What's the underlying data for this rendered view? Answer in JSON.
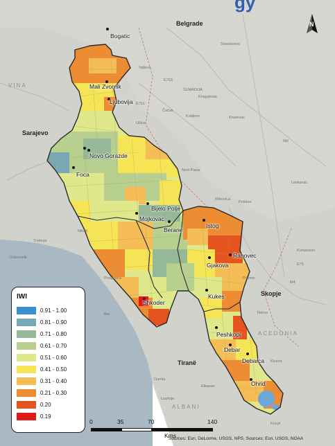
{
  "map": {
    "title_fragment": "gy",
    "legend": {
      "title": "IWI",
      "items": [
        {
          "label": "0.91 - 1.00",
          "color": "#3a8fd0"
        },
        {
          "label": "0.81 - 0.90",
          "color": "#78a8b4"
        },
        {
          "label": "0.71 - 0.80",
          "color": "#95b996"
        },
        {
          "label": "0.61 - 0.70",
          "color": "#b7d08f"
        },
        {
          "label": "0.51 - 0.60",
          "color": "#dfe88a"
        },
        {
          "label": "0.41 - 0.50",
          "color": "#f5e556"
        },
        {
          "label": "0.31 - 0.40",
          "color": "#f4bd56"
        },
        {
          "label": "0.21 - 0.30",
          "color": "#ee8c33"
        },
        {
          "label": "0.20",
          "color": "#e5541f"
        },
        {
          "label": "0.19",
          "color": "#e01a1a"
        }
      ]
    },
    "places": [
      "Bogatic",
      "Mali Zvornik",
      "Ljubovija",
      "Novo Gorazde",
      "Foca",
      "Bijelo Polje",
      "Mojkovac",
      "Berane",
      "Istog",
      "Rahovec",
      "Gjakova",
      "Shkoder",
      "Kukes",
      "Peshkopi",
      "Debar",
      "Debarca",
      "Ohrid"
    ],
    "basemap_labels": {
      "belgrade": "Belgrade",
      "sarajevo": "Sarajevo",
      "skopje": "Skopje",
      "tirane": "Tiranë",
      "vina": "VINA",
      "albania": "ALBANI",
      "macedonia": "ACEDONIA",
      "e763": "E763",
      "e761": "E761",
      "e75": "E75",
      "m4": "M4",
      "smederevo": "Smederevo",
      "sumadija": "ŠUMADIJA",
      "kragujevac": "Kragujevac",
      "kraljevo": "Kraljevo",
      "krusevac": "Krusevac",
      "nis": "Niš",
      "leskovac": "Leskovac",
      "cacak": "Čačak",
      "pristina": "Priština",
      "novi_pazar": "Novi Pazar",
      "mitrovica": "Mitrovica",
      "prizren": "Prizren",
      "kumanovo": "Kumanovo",
      "tetovo": "Tetovo",
      "kicevo": "Kicevo",
      "elbasan": "Elbasan",
      "lushnje": "Lushnje",
      "durres": "Durrës",
      "podgorica": "Podgorica",
      "trebinje": "Trebinje",
      "dubrovnik": "Dubrovnik",
      "bar": "Bar",
      "niksic": "Nikšić",
      "uzice": "Užice",
      "valjevo": "Valjevo",
      "korce": "Korçë"
    },
    "north_label": "N",
    "scale": {
      "ticks": [
        "0",
        "35",
        "70",
        "140"
      ],
      "unit": "Kms"
    },
    "attribution": "Sources: Esri, DeLorme, USGS, NPS, Sources: Esri, USGS, NOAA"
  }
}
